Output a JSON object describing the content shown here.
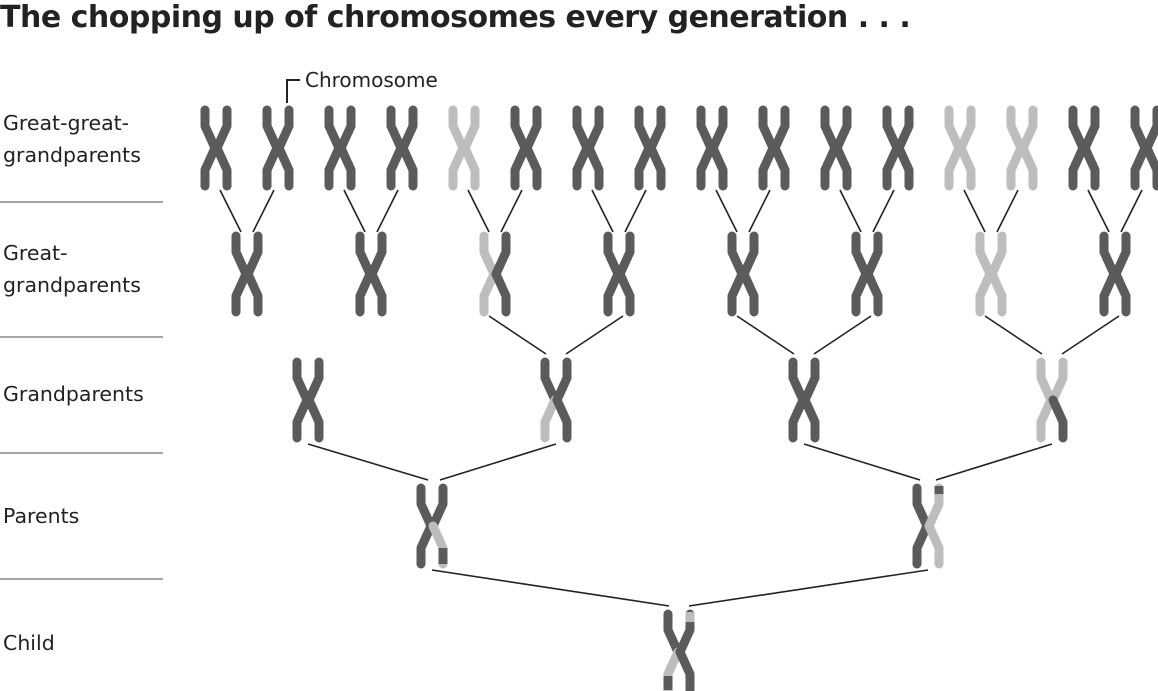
{
  "title": "The chopping up of chromosomes every generation . . .",
  "callout_label": "Chromosome",
  "rows": [
    {
      "label": "Great-great-\ngrandparents"
    },
    {
      "label": "Great-\ngrandparents"
    },
    {
      "label": "Grandparents"
    },
    {
      "label": "Parents"
    },
    {
      "label": "Child"
    }
  ],
  "colors": {
    "dark": "#5b5b5b",
    "light": "#bdbdbd",
    "line": "#222222",
    "divider": "#a6a6a6"
  },
  "chromosomes": {
    "great_great_grandparents": [
      {
        "top": "dark",
        "bottom": "dark"
      },
      {
        "top": "dark",
        "bottom": "dark"
      },
      {
        "top": "dark",
        "bottom": "dark"
      },
      {
        "top": "dark",
        "bottom": "dark"
      },
      {
        "top": "light",
        "bottom": "light"
      },
      {
        "top": "dark",
        "bottom": "dark"
      },
      {
        "top": "dark",
        "bottom": "dark"
      },
      {
        "top": "dark",
        "bottom": "dark"
      },
      {
        "top": "dark",
        "bottom": "dark"
      },
      {
        "top": "dark",
        "bottom": "dark"
      },
      {
        "top": "dark",
        "bottom": "dark"
      },
      {
        "top": "dark",
        "bottom": "dark"
      },
      {
        "top": "light",
        "bottom": "light"
      },
      {
        "top": "light",
        "bottom": "light"
      },
      {
        "top": "dark",
        "bottom": "dark"
      },
      {
        "top": "dark",
        "bottom": "dark"
      }
    ],
    "great_grandparents": [
      {
        "top": "dark",
        "bottom": "dark"
      },
      {
        "top": "dark",
        "bottom": "dark"
      },
      {
        "top": "light",
        "bottom": "light",
        "mix": "great-left-light"
      },
      {
        "top": "dark",
        "bottom": "dark"
      },
      {
        "top": "dark",
        "bottom": "dark"
      },
      {
        "top": "dark",
        "bottom": "dark"
      },
      {
        "top": "light",
        "bottom": "light"
      },
      {
        "top": "dark",
        "bottom": "dark"
      }
    ],
    "grandparents": [
      {
        "mix": "dark"
      },
      {
        "mix": "grand-b"
      },
      {
        "mix": "dark"
      },
      {
        "mix": "grand-d"
      }
    ],
    "parents": [
      {
        "mix": "parent-a"
      },
      {
        "mix": "parent-b"
      }
    ],
    "child": [
      {
        "mix": "child"
      }
    ]
  }
}
